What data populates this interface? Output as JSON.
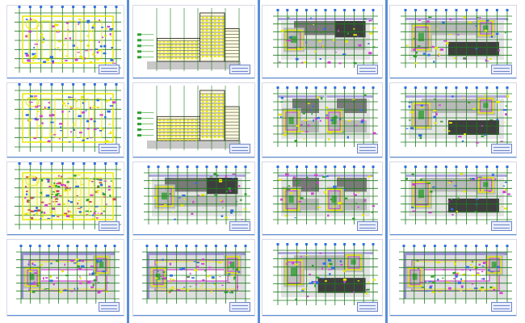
{
  "title": "",
  "colors": {
    "background": "#ffffff",
    "grid": "#1f7a1f",
    "axis_blue": "#5b8fd6",
    "wall_yellow": "#e8e800",
    "room_magenta": "#d040d0",
    "dark_fill": "#3e3e3e",
    "mid_fill": "#7a7a7a",
    "light_fill": "#b9b9b9",
    "purple_band": "#9b8fd6",
    "title_block": "#e8edfb"
  },
  "sheets": [
    {
      "id": "sheet-r1c1",
      "kind": "site-plan-yellow"
    },
    {
      "id": "sheet-r1c2",
      "kind": "elevation"
    },
    {
      "id": "sheet-r1c3",
      "kind": "floor-plan-dark-top"
    },
    {
      "id": "sheet-r1c4",
      "kind": "floor-plan-dark-bottom"
    },
    {
      "id": "sheet-r2c1",
      "kind": "site-plan-yellow"
    },
    {
      "id": "sheet-r2c2",
      "kind": "elevation"
    },
    {
      "id": "sheet-r2c3",
      "kind": "twin-floor-plan"
    },
    {
      "id": "sheet-r2c4",
      "kind": "floor-plan-dark-bottom"
    },
    {
      "id": "sheet-r3c1",
      "kind": "site-plan-colored"
    },
    {
      "id": "sheet-r3c2",
      "kind": "floor-plan-dark-top"
    },
    {
      "id": "sheet-r3c3",
      "kind": "twin-floor-plan"
    },
    {
      "id": "sheet-r3c4",
      "kind": "floor-plan-dark-bottom"
    },
    {
      "id": "sheet-r4c1",
      "kind": "courtyard-plan"
    },
    {
      "id": "sheet-r4c2",
      "kind": "courtyard-plan"
    },
    {
      "id": "sheet-r4c3",
      "kind": "floor-plan-dark-bottom"
    },
    {
      "id": "sheet-r4c4",
      "kind": "courtyard-plan"
    }
  ]
}
